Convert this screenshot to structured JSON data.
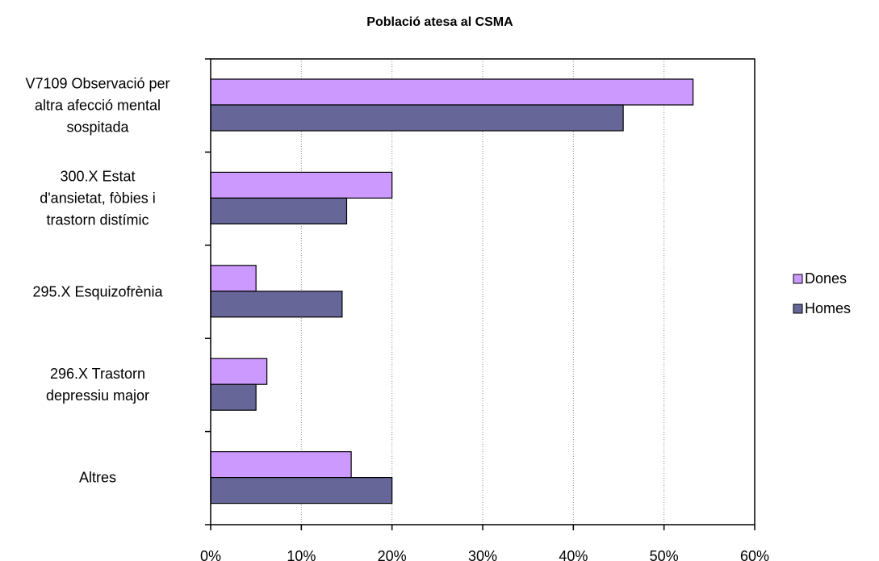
{
  "chart_data": {
    "type": "hbar",
    "title": "Població atesa al CSMA",
    "categories": [
      "V7109 Observació per\naltra afecció mental\nsospitada",
      "300.X Estat\nd'ansietat, fòbies i\ntrastorn distímic",
      "295.X Esquizofrènia",
      "296.X Trastorn\ndepressiu major",
      "Altres"
    ],
    "series": [
      {
        "name": "Dones",
        "color": "#cc99ff",
        "values": [
          53.2,
          20,
          5,
          6.2,
          15.5
        ]
      },
      {
        "name": "Homes",
        "color": "#666699",
        "values": [
          45.5,
          15,
          14.5,
          5,
          20
        ]
      }
    ],
    "xlim": [
      0,
      60
    ],
    "xticks": [
      {
        "value": 0,
        "label": "0%"
      },
      {
        "value": 10,
        "label": "10%"
      },
      {
        "value": 20,
        "label": "20%"
      },
      {
        "value": 30,
        "label": "30%"
      },
      {
        "value": 40,
        "label": "40%"
      },
      {
        "value": 50,
        "label": "50%"
      },
      {
        "value": 60,
        "label": "60%"
      }
    ],
    "grid": true,
    "legend": "right"
  }
}
